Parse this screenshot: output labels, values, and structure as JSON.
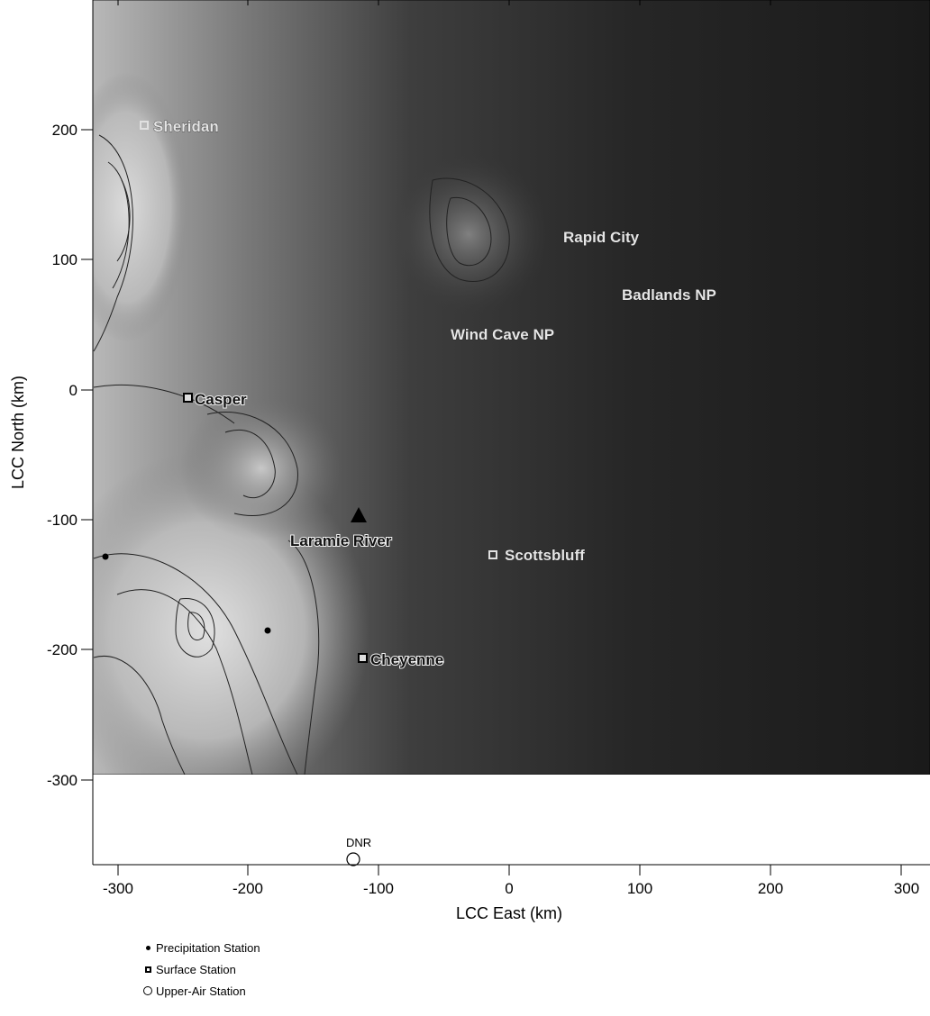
{
  "axes": {
    "x_title": "LCC East (km)",
    "y_title": "LCC North (km)",
    "x_ticks": [
      "-300",
      "-200",
      "-100",
      "0",
      "100",
      "200",
      "300"
    ],
    "y_ticks": [
      "200",
      "100",
      "0",
      "-100",
      "-200",
      "-300"
    ]
  },
  "places": [
    {
      "label": "Sheridan",
      "style": "light"
    },
    {
      "label": "Rapid City",
      "style": "light"
    },
    {
      "label": "Badlands NP",
      "style": "light"
    },
    {
      "label": "Wind Cave NP",
      "style": "light"
    },
    {
      "label": "Casper",
      "style": "dark"
    },
    {
      "label": "Laramie River",
      "style": "dark"
    },
    {
      "label": "Scottsbluff",
      "style": "light"
    },
    {
      "label": "Cheyenne",
      "style": "dark"
    },
    {
      "label": "DNR",
      "style": "plain"
    }
  ],
  "legend": {
    "precipitation": "Precipitation Station",
    "surface": "Surface Station",
    "upper_air": "Upper-Air Station"
  },
  "colors": {
    "terrain_dark": "#1c1c1c",
    "terrain_mid": "#5a5a5a",
    "terrain_light": "#cfcfcf"
  }
}
